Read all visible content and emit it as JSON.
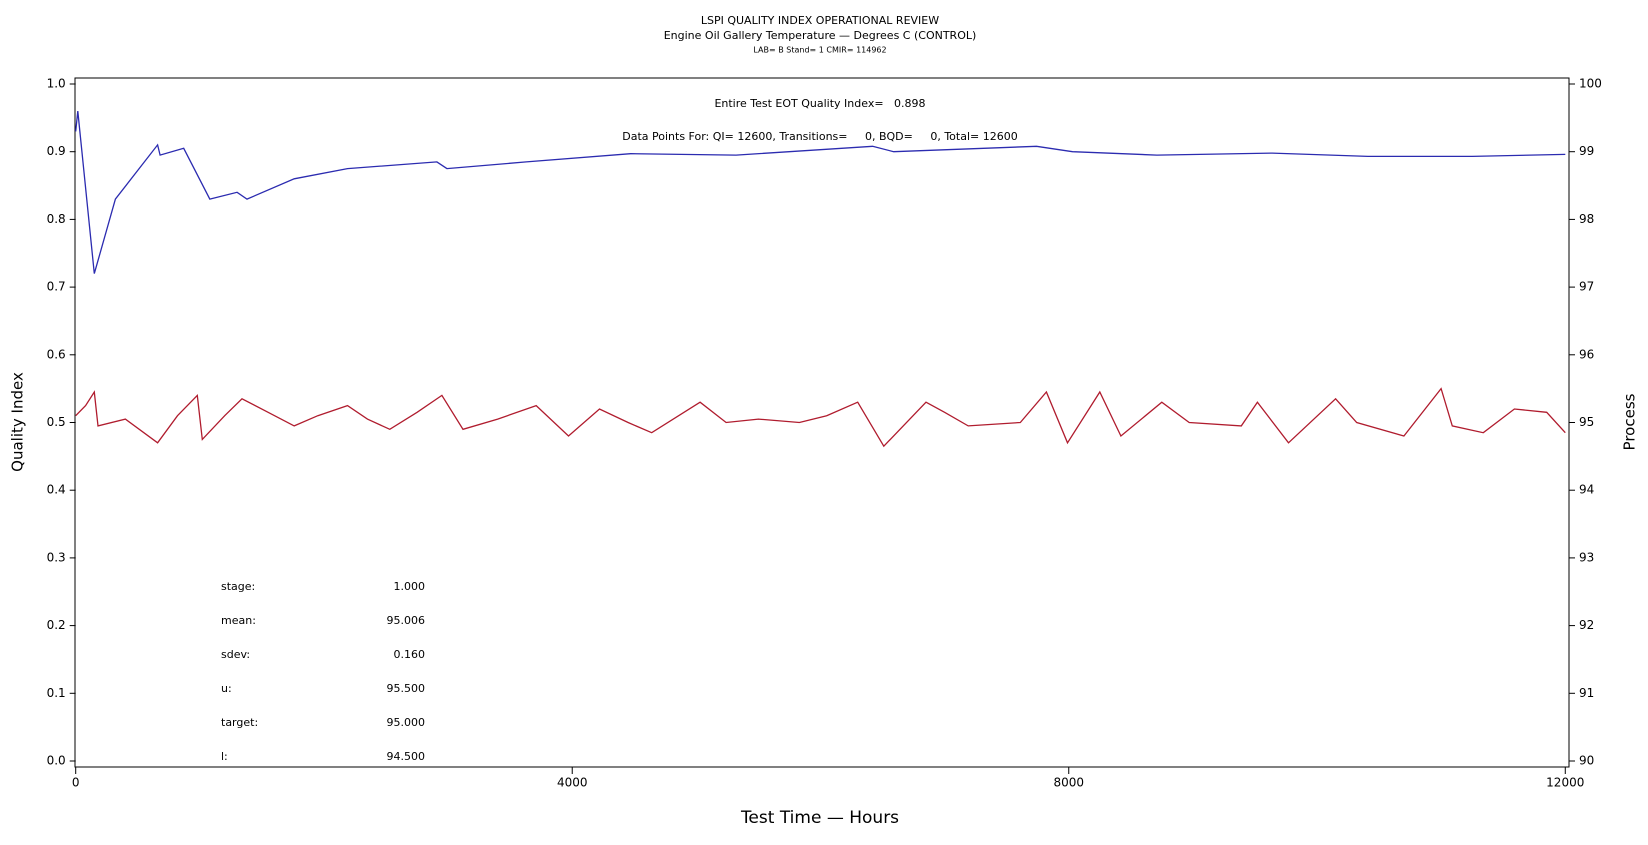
{
  "chart_data": {
    "type": "line",
    "title": "LSPI QUALITY INDEX OPERATIONAL REVIEW",
    "subtitle": "Engine Oil Gallery Temperature — Degrees C (CONTROL)",
    "caption": "LAB= B Stand= 1 CMIR= 114962",
    "annotations": [
      "Entire Test EOT Quality Index=   0.898",
      "Data Points For: QI= 12600, Transitions=     0, BQD=     0, Total= 12600"
    ],
    "stats": [
      {
        "label": "stage:",
        "value": "1.000"
      },
      {
        "label": "mean:",
        "value": "95.006"
      },
      {
        "label": "sdev:",
        "value": "0.160"
      },
      {
        "label": "u:",
        "value": "95.500"
      },
      {
        "label": "target:",
        "value": "95.000"
      },
      {
        "label": "l:",
        "value": "94.500"
      }
    ],
    "xlabel": "Test Time — Hours",
    "ylabel": "Quality Index",
    "y2label": "Process",
    "xlim": [
      0,
      12030
    ],
    "xticks": [
      0,
      4000,
      8000,
      12000
    ],
    "ylim": [
      0,
      1
    ],
    "yticks": [
      {
        "value": 0,
        "label": "0.0"
      },
      0.1,
      0.2,
      0.3,
      0.4,
      0.5,
      0.6,
      0.7,
      0.8,
      0.9,
      {
        "value": 1,
        "label": "1.0"
      }
    ],
    "y2lim": [
      90,
      100
    ],
    "y2ticks": [
      90,
      91,
      92,
      93,
      94,
      95,
      96,
      97,
      98,
      99,
      100
    ],
    "series": [
      {
        "name": "Quality Index",
        "color": "#2b2bb0",
        "x": [
          0,
          17,
          150,
          320,
          660,
          680,
          870,
          1080,
          1300,
          1380,
          1760,
          2190,
          2910,
          2990,
          3630,
          4470,
          5320,
          6420,
          6590,
          7740,
          8030,
          8710,
          9640,
          10410,
          11250,
          12000
        ],
        "values": [
          0.93,
          0.96,
          0.72,
          0.83,
          0.91,
          0.895,
          0.905,
          0.83,
          0.84,
          0.83,
          0.86,
          0.875,
          0.885,
          0.875,
          0.885,
          0.897,
          0.895,
          0.908,
          0.9,
          0.908,
          0.9,
          0.895,
          0.898,
          0.893,
          0.893,
          0.896
        ]
      },
      {
        "name": "Process",
        "color": "#b01c2e",
        "axis": "y2",
        "x": [
          0,
          80,
          150,
          180,
          400,
          660,
          820,
          980,
          1020,
          1200,
          1340,
          1550,
          1760,
          1950,
          2190,
          2350,
          2530,
          2750,
          2950,
          3120,
          3400,
          3710,
          3970,
          4220,
          4450,
          4640,
          5030,
          5240,
          5500,
          5830,
          6050,
          6300,
          6510,
          6850,
          7000,
          7190,
          7610,
          7820,
          7990,
          8250,
          8420,
          8750,
          8970,
          9390,
          9520,
          9770,
          10150,
          10320,
          10700,
          11000,
          11090,
          11340,
          11590,
          11850,
          12000
        ],
        "values": [
          95.1,
          95.25,
          95.45,
          94.95,
          95.05,
          94.7,
          95.1,
          95.4,
          94.75,
          95.1,
          95.35,
          95.15,
          94.95,
          95.1,
          95.25,
          95.05,
          94.9,
          95.15,
          95.4,
          94.9,
          95.05,
          95.25,
          94.8,
          95.2,
          95.0,
          94.85,
          95.3,
          95.0,
          95.05,
          95.0,
          95.1,
          95.3,
          94.65,
          95.3,
          95.15,
          94.95,
          95.0,
          95.45,
          94.7,
          95.45,
          94.8,
          95.3,
          95.0,
          94.95,
          95.3,
          94.7,
          95.35,
          95.0,
          94.8,
          95.5,
          94.95,
          94.85,
          95.2,
          95.15,
          94.85
        ]
      }
    ]
  }
}
